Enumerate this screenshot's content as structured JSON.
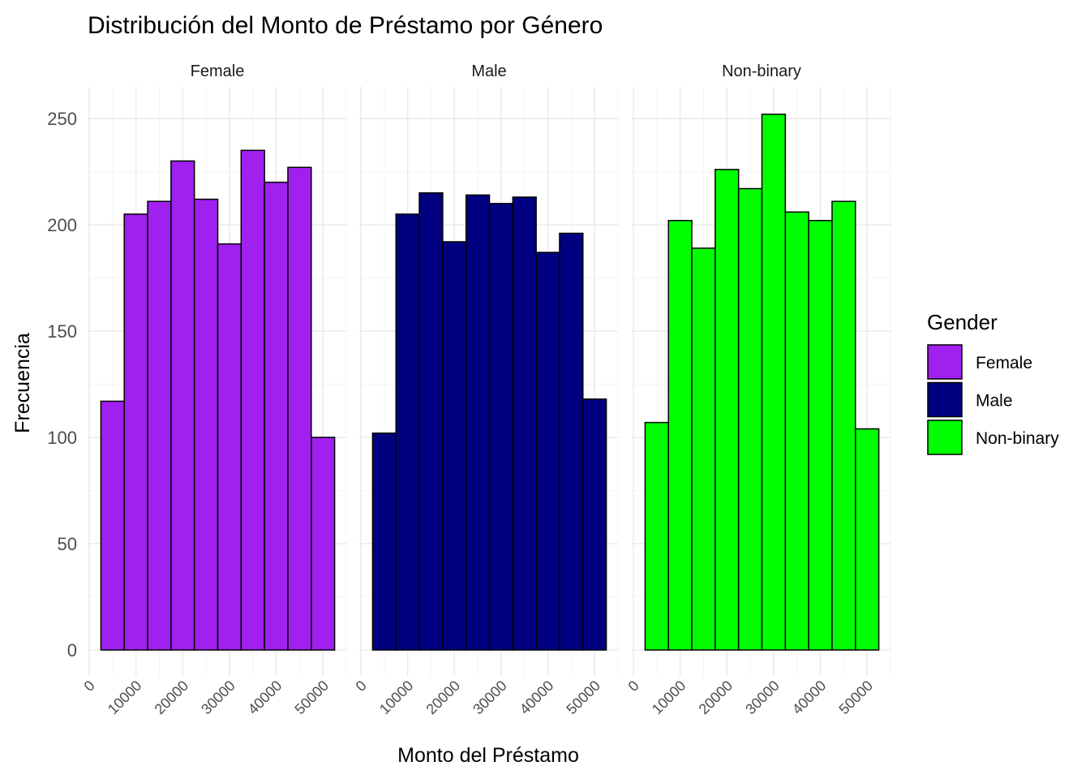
{
  "chart_data": {
    "type": "bar",
    "title": "Distribución del Monto de Préstamo por Género",
    "xlabel": "Monto del Préstamo",
    "ylabel": "Frecuencia",
    "xlim": [
      0,
      55000
    ],
    "ylim": [
      0,
      260
    ],
    "x_ticks": [
      "0",
      "10000",
      "20000",
      "30000",
      "40000",
      "50000"
    ],
    "x_tick_values": [
      0,
      10000,
      20000,
      30000,
      40000,
      50000
    ],
    "y_ticks": [
      "0",
      "50",
      "100",
      "150",
      "200",
      "250"
    ],
    "y_tick_values": [
      0,
      50,
      100,
      150,
      200,
      250
    ],
    "bin_width": 5000,
    "bin_centers": [
      5000,
      10000,
      15000,
      20000,
      25000,
      30000,
      35000,
      40000,
      45000,
      50000
    ],
    "grid": true,
    "legend_position": "right",
    "legend_title": "Gender",
    "facets": [
      {
        "name": "Female",
        "color": "#A020F0",
        "values": [
          117,
          205,
          211,
          230,
          212,
          191,
          235,
          220,
          227,
          100
        ]
      },
      {
        "name": "Male",
        "color": "#000080",
        "values": [
          102,
          205,
          215,
          192,
          214,
          210,
          213,
          187,
          196,
          118
        ]
      },
      {
        "name": "Non-binary",
        "color": "#00FF00",
        "values": [
          107,
          202,
          189,
          226,
          217,
          252,
          206,
          202,
          211,
          104
        ]
      }
    ]
  }
}
